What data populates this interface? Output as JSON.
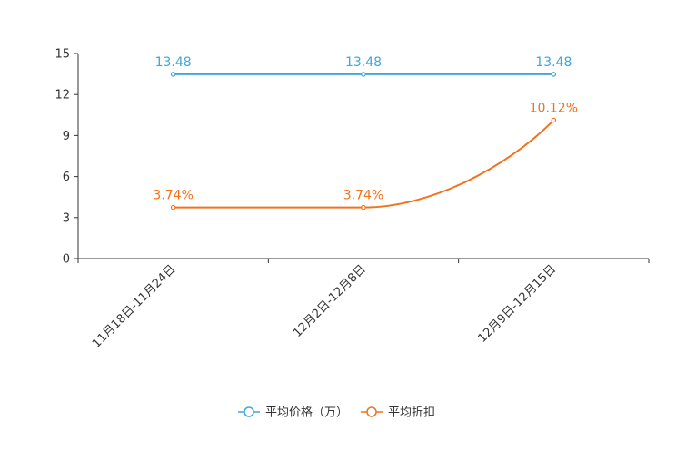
{
  "chart_data": {
    "type": "line",
    "title": "",
    "xlabel": "",
    "ylabel": "",
    "categories": [
      "11月18日-11月24日",
      "12月2日-12月8日",
      "12月9日-12月15日"
    ],
    "ylim": [
      0,
      15
    ],
    "yticks": [
      "0",
      "3",
      "6",
      "9",
      "12",
      "15"
    ],
    "grid": false,
    "legend_position": "bottom",
    "series": [
      {
        "name": "平均价格（万）",
        "color": "#3fa7dc",
        "values": [
          13.48,
          13.48,
          13.48
        ],
        "labels": [
          "13.48",
          "13.48",
          "13.48"
        ]
      },
      {
        "name": "平均折扣",
        "color": "#f2721c",
        "values": [
          3.74,
          3.74,
          10.12
        ],
        "labels": [
          "3.74%",
          "3.74%",
          "10.12%"
        ]
      }
    ]
  }
}
